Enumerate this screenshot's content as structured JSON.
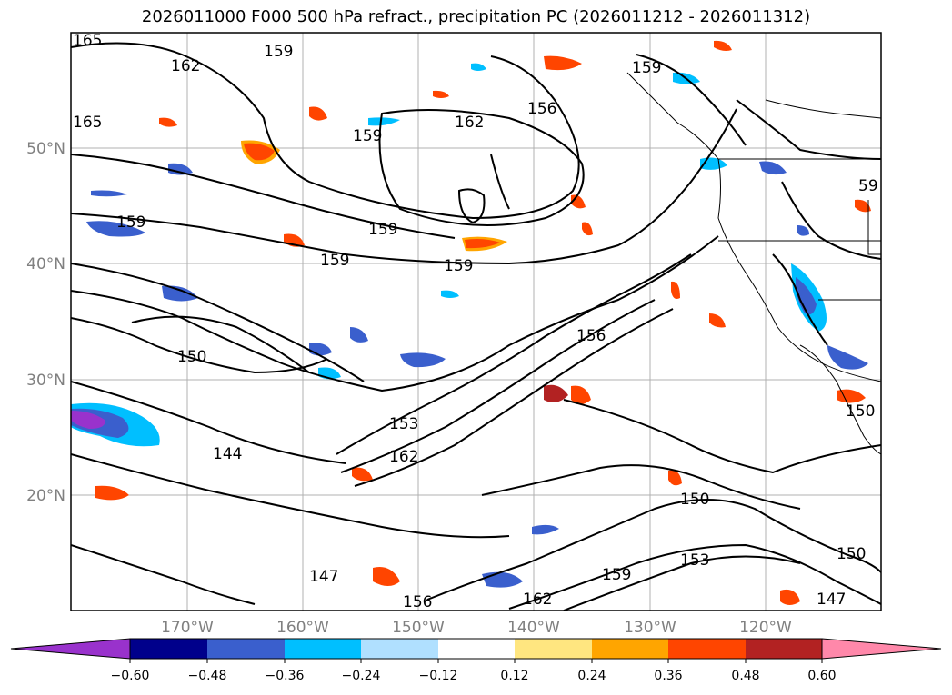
{
  "title": "2026011000 F000 500 hPa refract., precipitation PC (2026011212 - 2026011312)",
  "map": {
    "lat_labels": [
      "50°N",
      "40°N",
      "30°N",
      "20°N"
    ],
    "lon_labels": [
      "170°W",
      "160°W",
      "150°W",
      "140°W",
      "130°W",
      "120°W"
    ],
    "contour_labels": [
      "165",
      "162",
      "159",
      "165",
      "159",
      "162",
      "156",
      "159",
      "159",
      "159",
      "159",
      "159",
      "156",
      "150",
      "153",
      "162",
      "144",
      "150",
      "150",
      "159",
      "153",
      "147",
      "150",
      "147",
      "162",
      "156",
      "59"
    ],
    "coastline_color": "#000000",
    "contour_color": "#000000",
    "grid_color": "#b0b0b0"
  },
  "colorbar": {
    "tick_labels": [
      "−0.60",
      "−0.48",
      "−0.36",
      "−0.24",
      "−0.12",
      "0.12",
      "0.24",
      "0.36",
      "0.48",
      "0.60"
    ],
    "colors": [
      "#9932cc",
      "#00008b",
      "#3a5fcd",
      "#00bfff",
      "#b0e0ff",
      "#ffffff",
      "#ffe680",
      "#ffa500",
      "#ff4500",
      "#b22222",
      "#ff88aa"
    ]
  }
}
